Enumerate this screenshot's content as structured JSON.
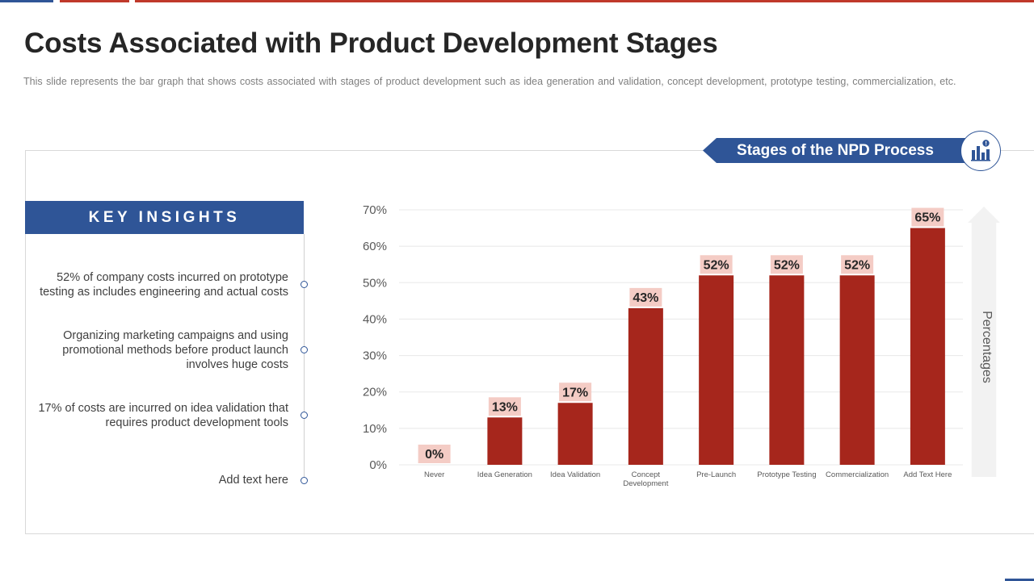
{
  "page": {
    "title": "Costs Associated with Product Development Stages",
    "subtitle": "This slide represents the bar graph that shows costs associated with stages of product development  such as idea generation and validation, concept development,  prototype testing, commercialization, etc."
  },
  "banner": {
    "label": "Stages of the NPD Process",
    "icon": "bar-chart-icon"
  },
  "insights": {
    "header": "KEY INSIGHTS",
    "items": [
      {
        "text": "52% of company costs incurred on prototype testing as includes engineering and actual costs"
      },
      {
        "text": "Organizing marketing campaigns and using promotional methods before product launch involves huge costs"
      },
      {
        "text": "17% of costs are incurred on idea validation that requires product development tools"
      },
      {
        "text": "Add text here"
      }
    ]
  },
  "colors": {
    "bar": "#a6261c",
    "label_bg": "#f4ccc5",
    "accent": "#2f5597",
    "grid": "#e8e8e8",
    "axis_text": "#595959"
  },
  "chart_data": {
    "type": "bar",
    "categories": [
      "Never",
      "Idea Generation",
      "Idea Validation",
      "Concept Development",
      "Pre-Launch",
      "Prototype Testing",
      "Commercialization",
      "Add Text Here"
    ],
    "category_lines": [
      [
        "Never"
      ],
      [
        "Idea Generation"
      ],
      [
        "Idea Validation"
      ],
      [
        "Concept",
        "Development"
      ],
      [
        "Pre-Launch"
      ],
      [
        "Prototype Testing"
      ],
      [
        "Commercialization"
      ],
      [
        "Add Text Here"
      ]
    ],
    "values": [
      0,
      13,
      17,
      43,
      52,
      52,
      52,
      65
    ],
    "data_labels": [
      "0%",
      "13%",
      "17%",
      "43%",
      "52%",
      "52%",
      "52%",
      "65%"
    ],
    "y_ticks": [
      0,
      10,
      20,
      30,
      40,
      50,
      60,
      70
    ],
    "y_tick_labels": [
      "0%",
      "10%",
      "20%",
      "30%",
      "40%",
      "50%",
      "60%",
      "70%"
    ],
    "ylim": [
      0,
      70
    ],
    "ylabel": "Percentages",
    "xlabel": "",
    "grid": true
  }
}
